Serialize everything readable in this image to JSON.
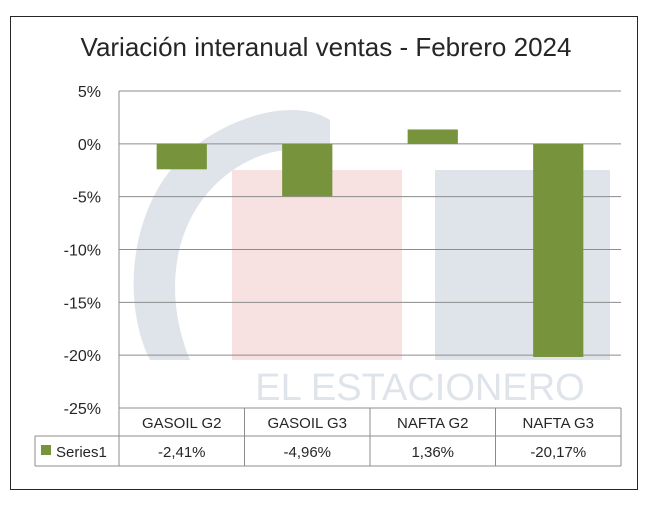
{
  "chart_data": {
    "type": "bar",
    "title": "Variación interanual ventas - Febrero 2024",
    "categories": [
      "GASOIL G2",
      "GASOIL G3",
      "NAFTA G2",
      "NAFTA G3"
    ],
    "series": [
      {
        "name": "Series1",
        "values": [
          -2.41,
          -4.96,
          1.36,
          -20.17
        ],
        "labels": [
          "-2,41%",
          "-4,96%",
          "1,36%",
          "-20,17%"
        ]
      }
    ],
    "yticks": [
      {
        "value": 5,
        "label": "5%"
      },
      {
        "value": 0,
        "label": "0%"
      },
      {
        "value": -5,
        "label": "-5%"
      },
      {
        "value": -10,
        "label": "-10%"
      },
      {
        "value": -15,
        "label": "-15%"
      },
      {
        "value": -20,
        "label": "-20%"
      },
      {
        "value": -25,
        "label": "-25%"
      }
    ],
    "ylim": [
      -25,
      5
    ],
    "grid": true,
    "legend": "data-table",
    "colors": {
      "bar": "#77933C",
      "grid": "#8C8C8C",
      "watermark": "#C5CEDA",
      "watermark_red": "#F4C9C9"
    }
  },
  "watermark": {
    "text": "EL ESTACIONERO",
    "logo_letters": "EE"
  }
}
